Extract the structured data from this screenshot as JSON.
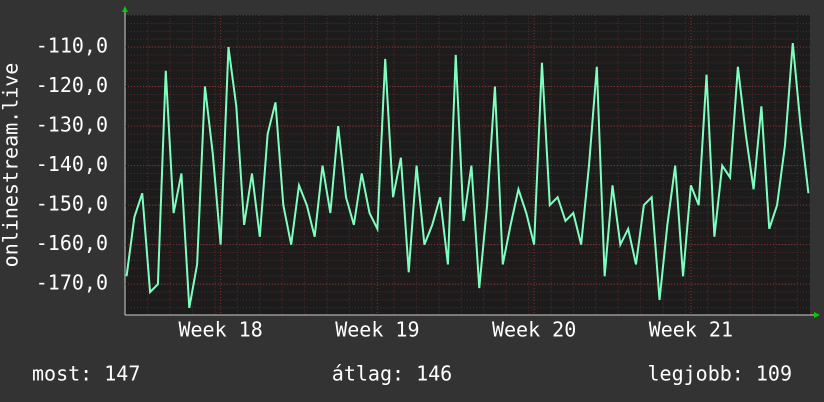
{
  "chart_data": {
    "type": "line",
    "y_label": "onlinestream.live",
    "x": [
      17.4,
      17.45,
      17.5,
      17.55,
      17.6,
      17.65,
      17.7,
      17.75,
      17.8,
      17.85,
      17.9,
      17.95,
      18.0,
      18.05,
      18.1,
      18.15,
      18.2,
      18.25,
      18.3,
      18.35,
      18.4,
      18.45,
      18.5,
      18.55,
      18.6,
      18.65,
      18.7,
      18.75,
      18.8,
      18.85,
      18.9,
      18.95,
      19.0,
      19.05,
      19.1,
      19.15,
      19.2,
      19.25,
      19.3,
      19.35,
      19.4,
      19.45,
      19.5,
      19.55,
      19.6,
      19.65,
      19.7,
      19.75,
      19.8,
      19.85,
      19.9,
      19.95,
      20.0,
      20.05,
      20.1,
      20.15,
      20.2,
      20.25,
      20.3,
      20.35,
      20.4,
      20.45,
      20.5,
      20.55,
      20.6,
      20.65,
      20.7,
      20.75,
      20.8,
      20.85,
      20.9,
      20.95,
      21.0,
      21.05,
      21.1,
      21.15,
      21.2,
      21.25,
      21.3,
      21.35,
      21.4,
      21.45,
      21.5,
      21.55,
      21.6,
      21.65,
      21.7,
      21.75
    ],
    "series": [
      {
        "color": "#7fffbf",
        "values": [
          -168,
          -153,
          -147,
          -172,
          -170,
          -116,
          -152,
          -142,
          -176,
          -165,
          -120,
          -137,
          -160,
          -110,
          -125,
          -155,
          -142,
          -158,
          -132,
          -124,
          -150,
          -160,
          -145,
          -150,
          -158,
          -140,
          -152,
          -130,
          -148,
          -155,
          -142,
          -152,
          -156,
          -113,
          -148,
          -138,
          -167,
          -140,
          -160,
          -155,
          -148,
          -165,
          -112,
          -154,
          -140,
          -171,
          -150,
          -120,
          -165,
          -155,
          -146,
          -152,
          -160,
          -114,
          -150,
          -148,
          -154,
          -152,
          -160,
          -140,
          -115,
          -168,
          -145,
          -160,
          -156,
          -165,
          -150,
          -148,
          -174,
          -155,
          -140,
          -168,
          -145,
          -150,
          -117,
          -158,
          -140,
          -143,
          -115,
          -132,
          -146,
          -125,
          -156,
          -150,
          -135,
          -109,
          -130,
          -147
        ]
      }
    ],
    "xlim": [
      17.39,
      21.76
    ],
    "xticks": [
      {
        "value": 18,
        "label": "Week 18"
      },
      {
        "value": 19,
        "label": "Week 19"
      },
      {
        "value": 20,
        "label": "Week 20"
      },
      {
        "value": 21,
        "label": "Week 21"
      }
    ],
    "ylim": [
      -177.8,
      -101.9
    ],
    "yticks": [
      {
        "value": -110,
        "label": "-110,0"
      },
      {
        "value": -120,
        "label": "-120,0"
      },
      {
        "value": -130,
        "label": "-130,0"
      },
      {
        "value": -140,
        "label": "-140,0"
      },
      {
        "value": -150,
        "label": "-150,0"
      },
      {
        "value": -160,
        "label": "-160,0"
      },
      {
        "value": -170,
        "label": "-170,0"
      }
    ],
    "grid": true,
    "footer": [
      "most: 147",
      "átlag: 146",
      "legjobb: 109"
    ]
  }
}
